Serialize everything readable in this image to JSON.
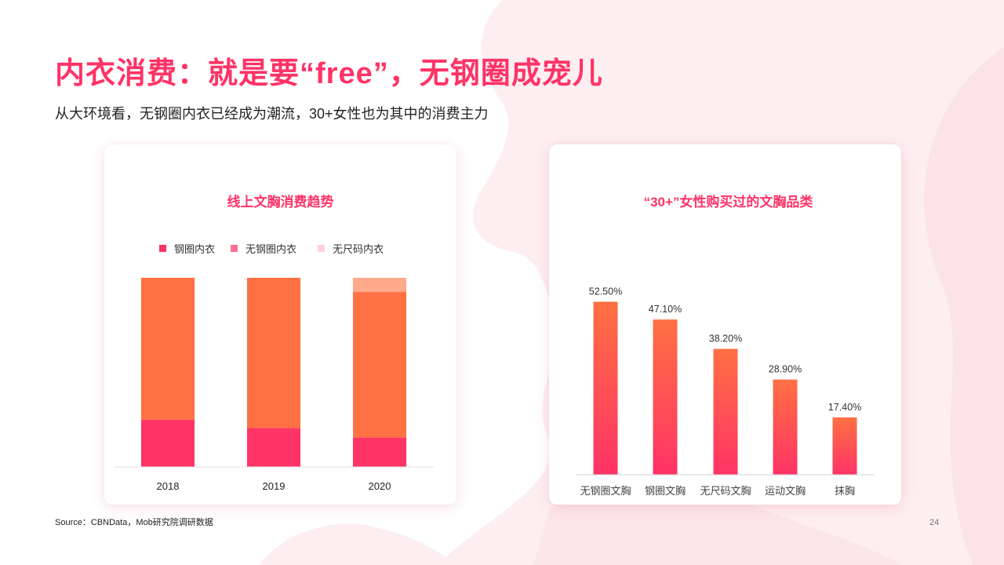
{
  "slide": {
    "title": "内衣消费：就是要“free”，无钢圈成宠儿",
    "subtitle": "从大环境看，无钢圈内衣已经成为潮流，30+女性也为其中的消费主力",
    "source": "Source：CBNData，Mob研究院调研数据",
    "page_number": "24"
  },
  "colors": {
    "accent": "#ff3366",
    "bar_orange": "#ff7043",
    "bar_pink": "#ff3366",
    "bar_peach": "#ffa98d",
    "legend_pink2": "#ff6f91",
    "legend_light": "#ffd2da"
  },
  "chart_data": [
    {
      "type": "bar",
      "stacked": true,
      "title": "线上文胸消费趋势",
      "categories": [
        "2018",
        "2019",
        "2020"
      ],
      "legend": [
        "钢圈内衣",
        "无钢圈内衣",
        "无尺码内衣"
      ],
      "legend_colors": [
        "#ff3366",
        "#ff6f91",
        "#ffd2da"
      ],
      "stack_segments": [
        {
          "color": "#ff3366",
          "values": [
            25,
            20.5,
            15.5
          ]
        },
        {
          "color": "#ff7043",
          "values": [
            75,
            79.5,
            77
          ]
        },
        {
          "color": "#ffa98d",
          "values": [
            0,
            0,
            7.5
          ]
        }
      ],
      "ylim": [
        0,
        100
      ],
      "y_axis_shown": false,
      "grid": false,
      "legend_position": "top"
    },
    {
      "type": "bar",
      "title": "“30+”女性购买过的文胸品类",
      "categories": [
        "无钢圈文胸",
        "钢圈文胸",
        "无尺码文胸",
        "运动文胸",
        "抹胸"
      ],
      "values": [
        52.5,
        47.1,
        38.2,
        28.9,
        17.4
      ],
      "value_labels": [
        "52.50%",
        "47.10%",
        "38.20%",
        "28.90%",
        "17.40%"
      ],
      "ylim": [
        0,
        60
      ],
      "y_axis_shown": false,
      "grid": false,
      "gradient": [
        "#ff7043",
        "#ff3366"
      ]
    }
  ]
}
